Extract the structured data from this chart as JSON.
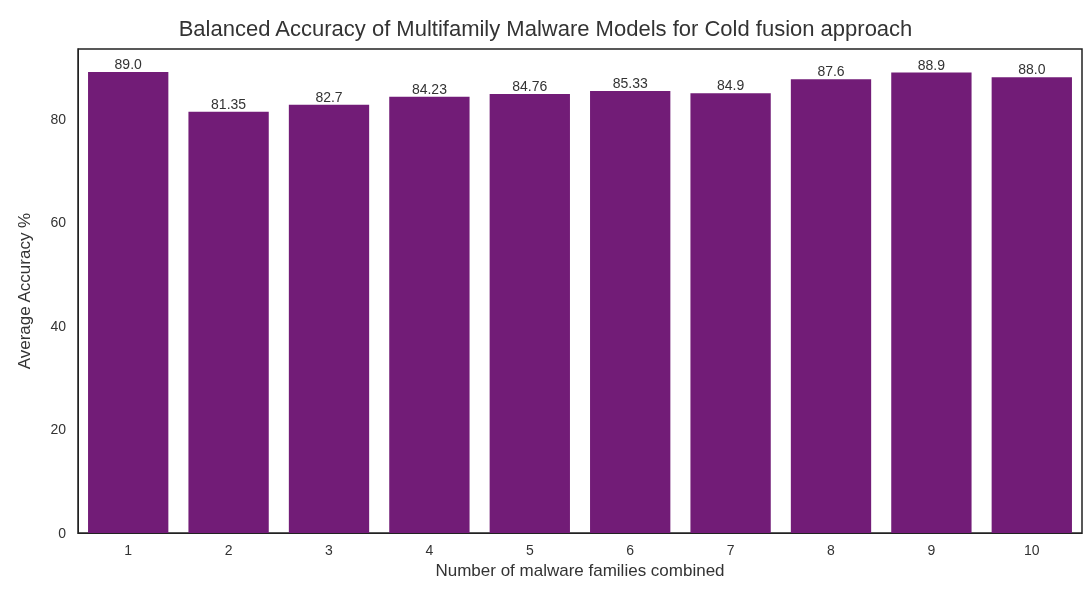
{
  "chart_data": {
    "type": "bar",
    "title": "Balanced Accuracy of Multifamily Malware Models for Cold fusion approach",
    "xlabel": "Number of malware families combined",
    "ylabel": "Average Accuracy %",
    "categories": [
      "1",
      "2",
      "3",
      "4",
      "5",
      "6",
      "7",
      "8",
      "9",
      "10"
    ],
    "values": [
      89.0,
      81.35,
      82.7,
      84.23,
      84.76,
      85.33,
      84.9,
      87.6,
      88.9,
      88.0
    ],
    "value_labels": [
      "89.0",
      "81.35",
      "82.7",
      "84.23",
      "84.76",
      "85.33",
      "84.9",
      "87.6",
      "88.9",
      "88.0"
    ],
    "color": "#721c77",
    "ylim": [
      0,
      93.45
    ],
    "yticks": [
      0,
      20,
      40,
      60,
      80
    ],
    "grid": false
  }
}
